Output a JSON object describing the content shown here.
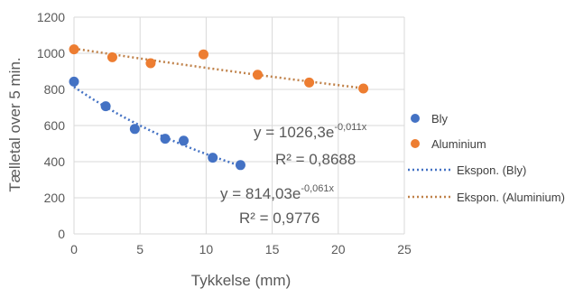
{
  "chart_data": {
    "type": "scatter",
    "xlabel": "Tykkelse (mm)",
    "ylabel": "Tælletal over 5 min.",
    "xlim": [
      0,
      25
    ],
    "ylim": [
      0,
      1200
    ],
    "x_ticks": [
      0,
      5,
      10,
      15,
      20,
      25
    ],
    "y_ticks": [
      0,
      200,
      400,
      600,
      800,
      1000,
      1200
    ],
    "grid": true,
    "legend_position": "right",
    "series": [
      {
        "name": "Bly",
        "color": "#4472C4",
        "points": [
          {
            "x": 0,
            "y": 843
          },
          {
            "x": 2.4,
            "y": 707
          },
          {
            "x": 4.6,
            "y": 581
          },
          {
            "x": 6.9,
            "y": 527
          },
          {
            "x": 8.3,
            "y": 516
          },
          {
            "x": 10.5,
            "y": 422
          },
          {
            "x": 12.6,
            "y": 381
          }
        ]
      },
      {
        "name": "Aluminium",
        "color": "#ED7D31",
        "points": [
          {
            "x": 0,
            "y": 1022
          },
          {
            "x": 2.9,
            "y": 978
          },
          {
            "x": 5.8,
            "y": 945
          },
          {
            "x": 9.8,
            "y": 994
          },
          {
            "x": 13.9,
            "y": 881
          },
          {
            "x": 17.8,
            "y": 838
          },
          {
            "x": 21.9,
            "y": 805
          }
        ]
      }
    ],
    "trendlines": [
      {
        "name": "Ekspon. (Bly)",
        "type": "exponential",
        "a": 814.03,
        "b": -0.061,
        "x_range": [
          0,
          12.6
        ],
        "color": "#4472C4",
        "equation_prefix": "y = 814,03e",
        "equation_exponent": "-0,061x",
        "r_squared_text": "R² = 0,9776"
      },
      {
        "name": "Ekspon. (Aluminium)",
        "type": "exponential",
        "a": 1026.3,
        "b": -0.011,
        "x_range": [
          0,
          21.9
        ],
        "color": "#C0824A",
        "equation_prefix": "y = 1026,3e",
        "equation_exponent": "-0,011x",
        "r_squared_text": "R² = 0,8688"
      }
    ]
  }
}
